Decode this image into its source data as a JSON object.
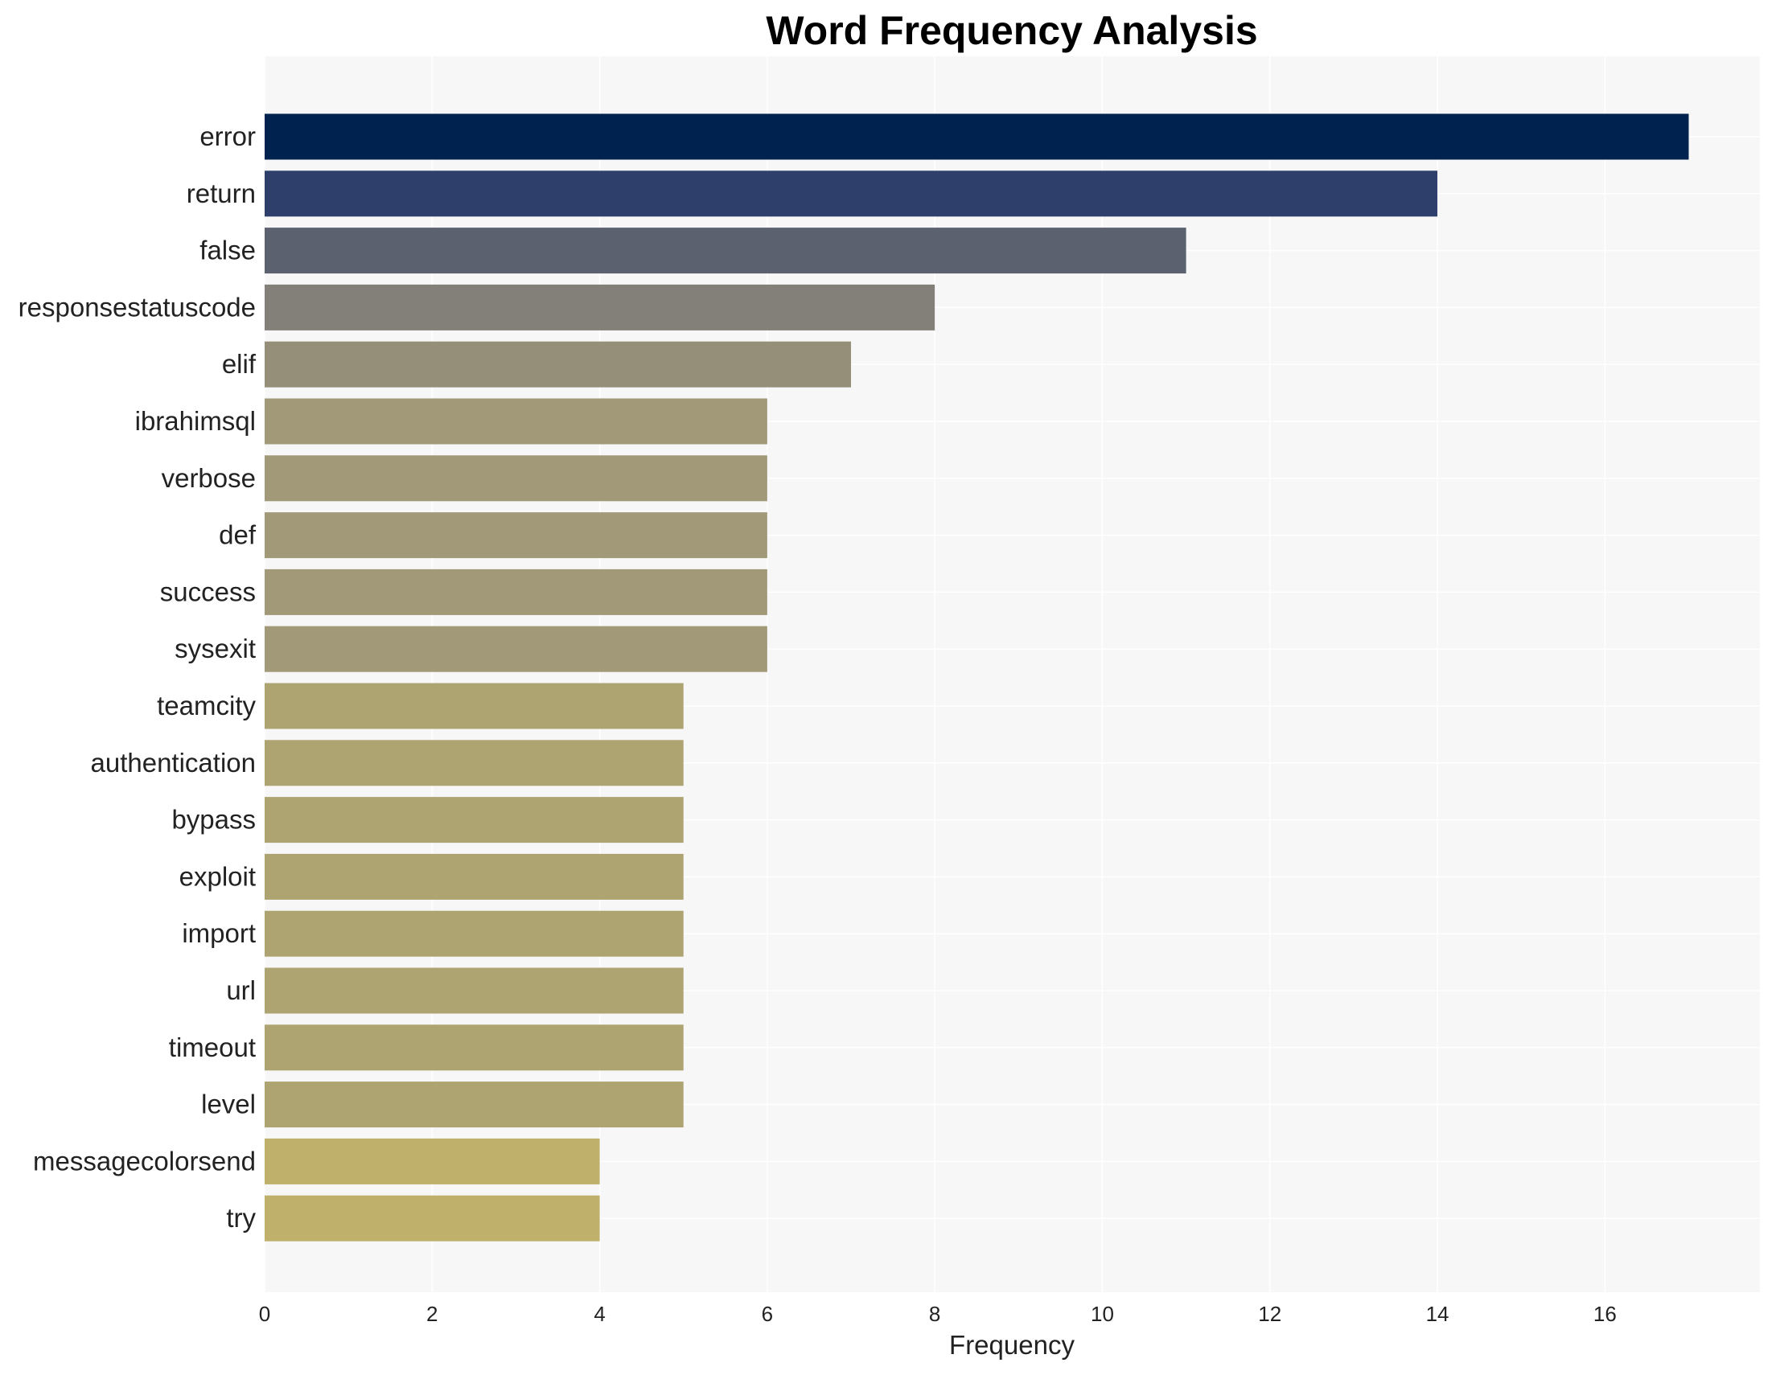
{
  "chart_data": {
    "type": "bar",
    "orientation": "horizontal",
    "title": "Word Frequency Analysis",
    "xlabel": "Frequency",
    "ylabel": "",
    "xlim": [
      0,
      17.85
    ],
    "xticks": [
      0,
      2,
      4,
      6,
      8,
      10,
      12,
      14,
      16
    ],
    "grid": true,
    "categories": [
      "error",
      "return",
      "false",
      "responsestatuscode",
      "elif",
      "ibrahimsql",
      "verbose",
      "def",
      "success",
      "sysexit",
      "teamcity",
      "authentication",
      "bypass",
      "exploit",
      "import",
      "url",
      "timeout",
      "level",
      "messagecolorsend",
      "try"
    ],
    "values": [
      17,
      14,
      11,
      8,
      7,
      6,
      6,
      6,
      6,
      6,
      5,
      5,
      5,
      5,
      5,
      5,
      5,
      5,
      4,
      4
    ],
    "colors": [
      "#00224e",
      "#2f3f6b",
      "#5b616e",
      "#838079",
      "#958e79",
      "#a19977",
      "#a19977",
      "#a19977",
      "#a19977",
      "#a19977",
      "#aea472",
      "#aea472",
      "#aea472",
      "#aea472",
      "#aea472",
      "#aea472",
      "#aea472",
      "#aea472",
      "#bfb06c",
      "#bfb06c"
    ]
  }
}
